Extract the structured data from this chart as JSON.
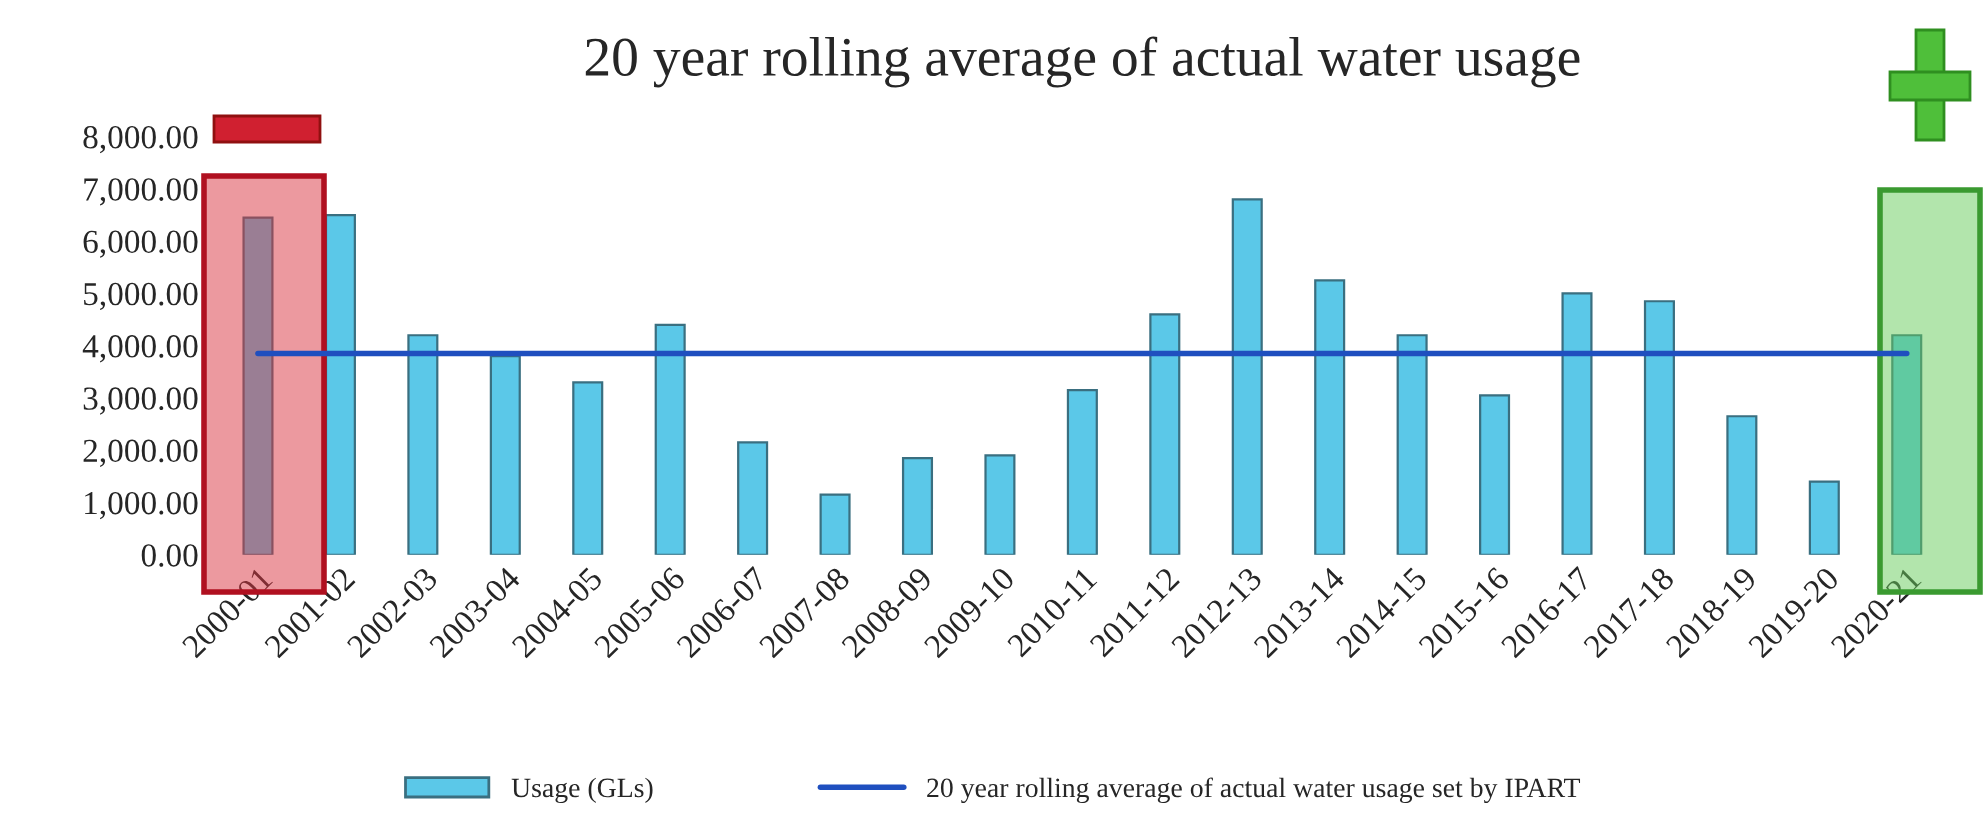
{
  "chart_data": {
    "type": "bar",
    "title": "20 year rolling average of actual water usage",
    "categories": [
      "2000-01",
      "2001-02",
      "2002-03",
      "2003-04",
      "2004-05",
      "2005-06",
      "2006-07",
      "2007-08",
      "2008-09",
      "2009-10",
      "2010-11",
      "2011-12",
      "2012-13",
      "2013-14",
      "2014-15",
      "2015-16",
      "2016-17",
      "2017-18",
      "2018-19",
      "2019-20",
      "2020-21"
    ],
    "series": [
      {
        "name": "Usage (GLs)",
        "color": "#5bc8e8",
        "values": [
          6450,
          6500,
          4200,
          3800,
          3300,
          4400,
          2150,
          1150,
          1850,
          1900,
          3150,
          4600,
          6800,
          5250,
          4200,
          3050,
          5000,
          4850,
          2650,
          1400,
          4200
        ]
      },
      {
        "name": "20 year rolling average of actual water usage set by IPART",
        "type": "line",
        "color": "#1f4fbf",
        "values": [
          3850,
          3850,
          3850,
          3850,
          3850,
          3850,
          3850,
          3850,
          3850,
          3850,
          3850,
          3850,
          3850,
          3850,
          3850,
          3850,
          3850,
          3850,
          3850,
          3850,
          3850
        ]
      }
    ],
    "ylim": [
      0,
      8000
    ],
    "yticks": [
      {
        "value": 0,
        "label": "0.00"
      },
      {
        "value": 1000,
        "label": "1,000.00"
      },
      {
        "value": 2000,
        "label": "2,000.00"
      },
      {
        "value": 3000,
        "label": "3,000.00"
      },
      {
        "value": 4000,
        "label": "4,000.00"
      },
      {
        "value": 5000,
        "label": "5,000.00"
      },
      {
        "value": 6000,
        "label": "6,000.00"
      },
      {
        "value": 7000,
        "label": "7,000.00"
      },
      {
        "value": 8000,
        "label": "8,000.00"
      }
    ],
    "grid": false,
    "legend": "bottom"
  }
}
